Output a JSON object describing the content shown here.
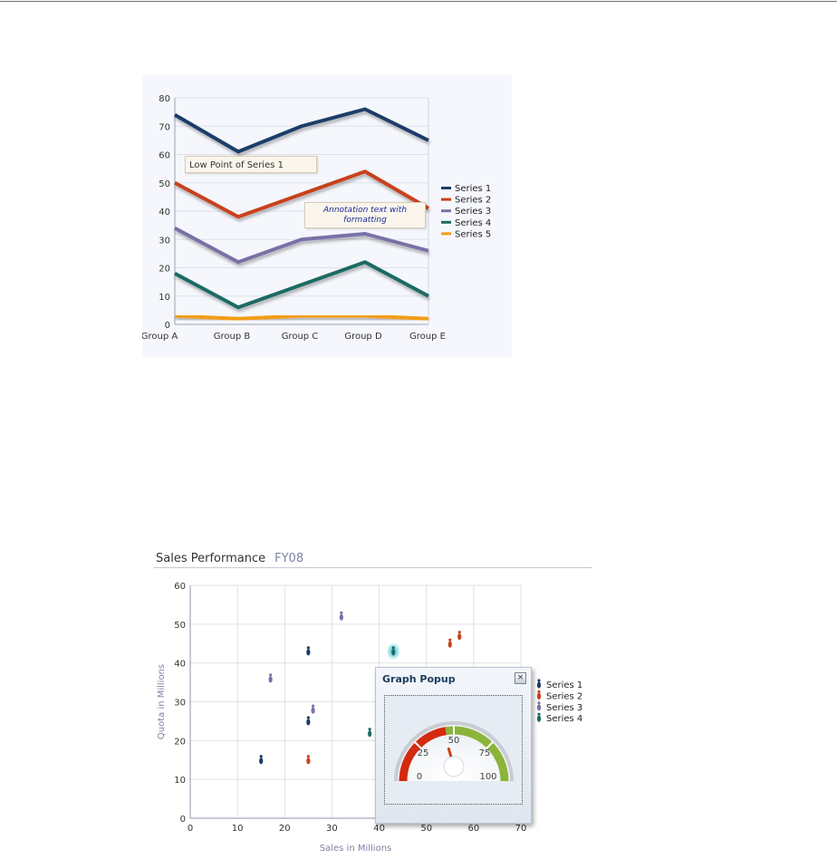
{
  "line_chart": {
    "chart_data": {
      "type": "line",
      "categories": [
        "Group A",
        "Group B",
        "Group C",
        "Group D",
        "Group E"
      ],
      "ylim": [
        0,
        80
      ],
      "yticks": [
        0,
        10,
        20,
        30,
        40,
        50,
        60,
        70,
        80
      ],
      "grid": true,
      "legend": "right",
      "series": [
        {
          "name": "Series 1",
          "color": "#1b3c67",
          "values": [
            74,
            61,
            70,
            76,
            65
          ]
        },
        {
          "name": "Series 2",
          "color": "#c9411b",
          "values": [
            50,
            38,
            46,
            54,
            41
          ]
        },
        {
          "name": "Series 3",
          "color": "#7971a6",
          "values": [
            34,
            22,
            30,
            32,
            26
          ]
        },
        {
          "name": "Series 4",
          "color": "#1d6b63",
          "values": [
            18,
            6,
            14,
            22,
            10
          ]
        },
        {
          "name": "Series 5",
          "color": "#f39c12",
          "values": [
            3,
            2,
            3,
            3,
            2
          ]
        }
      ]
    },
    "annotations": {
      "low_point": "Low Point of Series 1",
      "formatted_line1": "Annotation text with",
      "formatted_line2": "formatting"
    }
  },
  "scatter_chart": {
    "header": {
      "title": "Sales Performance",
      "subtitle": "FY08"
    },
    "chart_data": {
      "type": "scatter",
      "xlabel": "Sales in Millions",
      "ylabel": "Quota in Millions",
      "xlim": [
        0,
        70
      ],
      "ylim": [
        0,
        60
      ],
      "xticks": [
        0,
        10,
        20,
        30,
        40,
        50,
        60,
        70
      ],
      "yticks": [
        0,
        10,
        20,
        30,
        40,
        50,
        60
      ],
      "grid": true,
      "legend": "right",
      "series": [
        {
          "name": "Series 1",
          "color": "#1b3c67",
          "points": [
            [
              15,
              15
            ],
            [
              25,
              25
            ],
            [
              25,
              43
            ]
          ]
        },
        {
          "name": "Series 2",
          "color": "#c9411b",
          "points": [
            [
              25,
              15
            ],
            [
              55,
              45
            ],
            [
              57,
              47
            ]
          ]
        },
        {
          "name": "Series 3",
          "color": "#7971a6",
          "points": [
            [
              17,
              36
            ],
            [
              26,
              28
            ],
            [
              32,
              52
            ]
          ]
        },
        {
          "name": "Series 4",
          "color": "#1d6b63",
          "points": [
            [
              38,
              22
            ],
            [
              43,
              43
            ]
          ]
        }
      ],
      "highlighted_point": {
        "series": "Series 4",
        "x": 43,
        "y": 43
      }
    },
    "popup": {
      "title": "Graph Popup",
      "close_label": "×",
      "gauge": {
        "min": 0,
        "max": 100,
        "value": 45,
        "tick_labels": [
          "0",
          "25",
          "50",
          "75",
          "100"
        ],
        "colors": {
          "low": "#d42a10",
          "high": "#8bb43a"
        }
      }
    }
  }
}
